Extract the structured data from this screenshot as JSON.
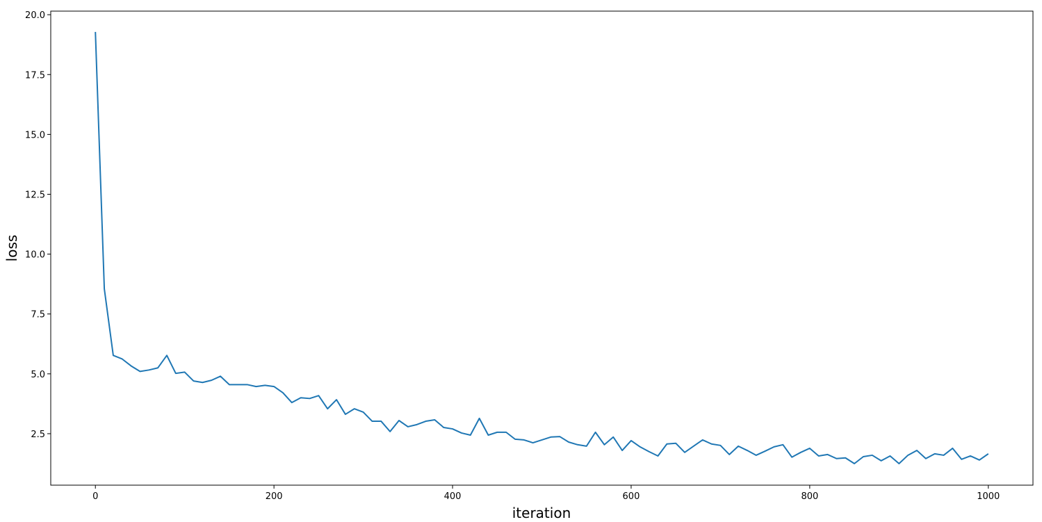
{
  "chart_data": {
    "type": "line",
    "xlabel": "iteration",
    "ylabel": "loss",
    "x": [
      0,
      10,
      20,
      30,
      40,
      50,
      60,
      70,
      80,
      90,
      100,
      110,
      120,
      130,
      140,
      150,
      160,
      170,
      180,
      190,
      200,
      210,
      220,
      230,
      240,
      250,
      260,
      270,
      280,
      290,
      300,
      310,
      320,
      330,
      340,
      350,
      360,
      370,
      380,
      390,
      400,
      410,
      420,
      430,
      440,
      450,
      460,
      470,
      480,
      490,
      500,
      510,
      520,
      530,
      540,
      550,
      560,
      570,
      580,
      590,
      600,
      610,
      620,
      630,
      640,
      650,
      660,
      670,
      680,
      690,
      700,
      710,
      720,
      730,
      740,
      750,
      760,
      770,
      780,
      790,
      800,
      810,
      820,
      830,
      840,
      850,
      860,
      870,
      880,
      890,
      900,
      910,
      920,
      930,
      940,
      950,
      960,
      970,
      980,
      990,
      1000
    ],
    "series": [
      {
        "color": "#1f77b4",
        "values": [
          19.28,
          8.55,
          5.77,
          5.62,
          5.33,
          5.1,
          5.16,
          5.25,
          5.77,
          5.02,
          5.07,
          4.7,
          4.64,
          4.73,
          4.9,
          4.55,
          4.55,
          4.55,
          4.47,
          4.52,
          4.47,
          4.21,
          3.8,
          4.0,
          3.97,
          4.09,
          3.54,
          3.92,
          3.31,
          3.54,
          3.4,
          3.02,
          3.02,
          2.59,
          3.05,
          2.79,
          2.88,
          3.02,
          3.08,
          2.76,
          2.7,
          2.53,
          2.44,
          3.14,
          2.44,
          2.56,
          2.56,
          2.27,
          2.24,
          2.12,
          2.24,
          2.36,
          2.38,
          2.15,
          2.04,
          1.98,
          2.56,
          2.04,
          2.36,
          1.8,
          2.21,
          1.95,
          1.75,
          1.57,
          2.07,
          2.1,
          1.72,
          1.98,
          2.24,
          2.07,
          2.01,
          1.63,
          1.98,
          1.8,
          1.6,
          1.77,
          1.95,
          2.04,
          1.52,
          1.72,
          1.89,
          1.57,
          1.63,
          1.46,
          1.49,
          1.25,
          1.54,
          1.6,
          1.37,
          1.57,
          1.25,
          1.6,
          1.8,
          1.46,
          1.66,
          1.6,
          1.89,
          1.43,
          1.57,
          1.4,
          1.66
        ]
      }
    ],
    "xlim": [
      -50,
      1050
    ],
    "ylim": [
      0.35,
      20.15
    ],
    "xticks": [
      0,
      200,
      400,
      600,
      800,
      1000
    ],
    "yticks": [
      2.5,
      {
        "value": 5,
        "label": "5.0"
      },
      7.5,
      {
        "value": 10,
        "label": "10.0"
      },
      12.5,
      {
        "value": 15,
        "label": "15.0"
      },
      17.5,
      {
        "value": 20,
        "label": "20.0"
      }
    ]
  }
}
